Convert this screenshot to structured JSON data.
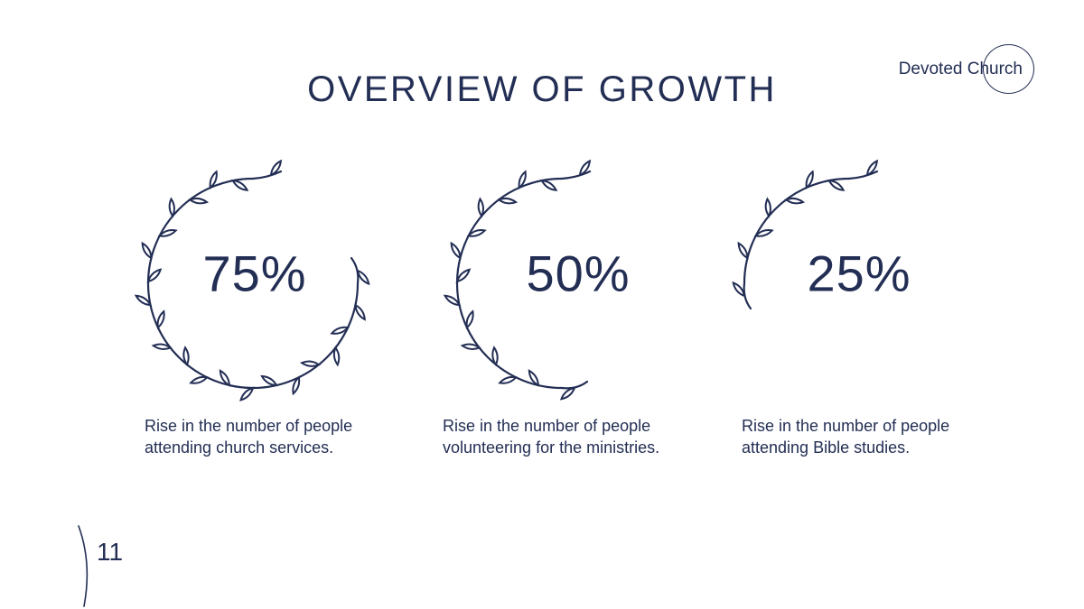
{
  "slide": {
    "title": "OVERVIEW OF GROWTH",
    "logo_text": "Devoted Church",
    "page_number": "11"
  },
  "colors": {
    "navy": "#232e54",
    "background": "#ffffff"
  },
  "stats": [
    {
      "value": "75%",
      "percent": 75,
      "caption": "Rise in the number of people attending church services."
    },
    {
      "value": "50%",
      "percent": 50,
      "caption": "Rise in the number of people volunteering for the ministries."
    },
    {
      "value": "25%",
      "percent": 25,
      "caption": "Rise in the number of people attending Bible studies."
    }
  ]
}
